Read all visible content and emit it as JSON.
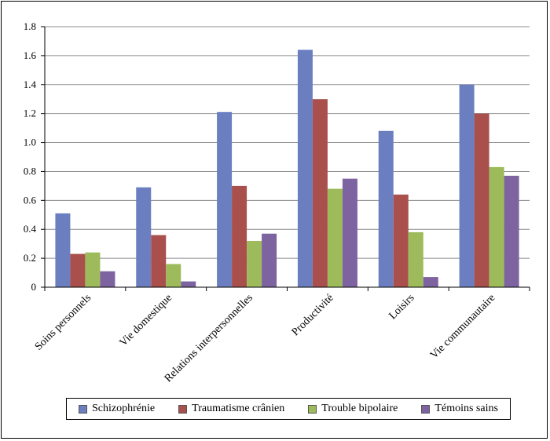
{
  "chart_data": {
    "type": "bar",
    "categories": [
      "Soins personnels",
      "Vie domestique",
      "Relations interpersonnelles",
      "Productivité",
      "Loisirs",
      "Vie communautaire"
    ],
    "series": [
      {
        "name": "Schizophrénie",
        "color": "#6b7fc0",
        "values": [
          0.51,
          0.69,
          1.21,
          1.64,
          1.08,
          1.4
        ]
      },
      {
        "name": "Traumatisme crânien",
        "color": "#a9504c",
        "values": [
          0.23,
          0.36,
          0.7,
          1.3,
          0.64,
          1.2
        ]
      },
      {
        "name": "Trouble bipolaire",
        "color": "#9dbb5b",
        "values": [
          0.24,
          0.16,
          0.32,
          0.68,
          0.38,
          0.83
        ]
      },
      {
        "name": "Témoins sains",
        "color": "#7e63a1",
        "values": [
          0.11,
          0.04,
          0.37,
          0.75,
          0.07,
          0.77
        ]
      }
    ],
    "ylim": [
      0,
      1.8
    ],
    "yticks": [
      "0",
      "0.2",
      "0.4",
      "0.6",
      "0.8",
      "1.0",
      "1.2",
      "1.4",
      "1.6",
      "1.8"
    ],
    "grid": true,
    "legend_position": "bottom",
    "title": "",
    "xlabel": "",
    "ylabel": ""
  }
}
